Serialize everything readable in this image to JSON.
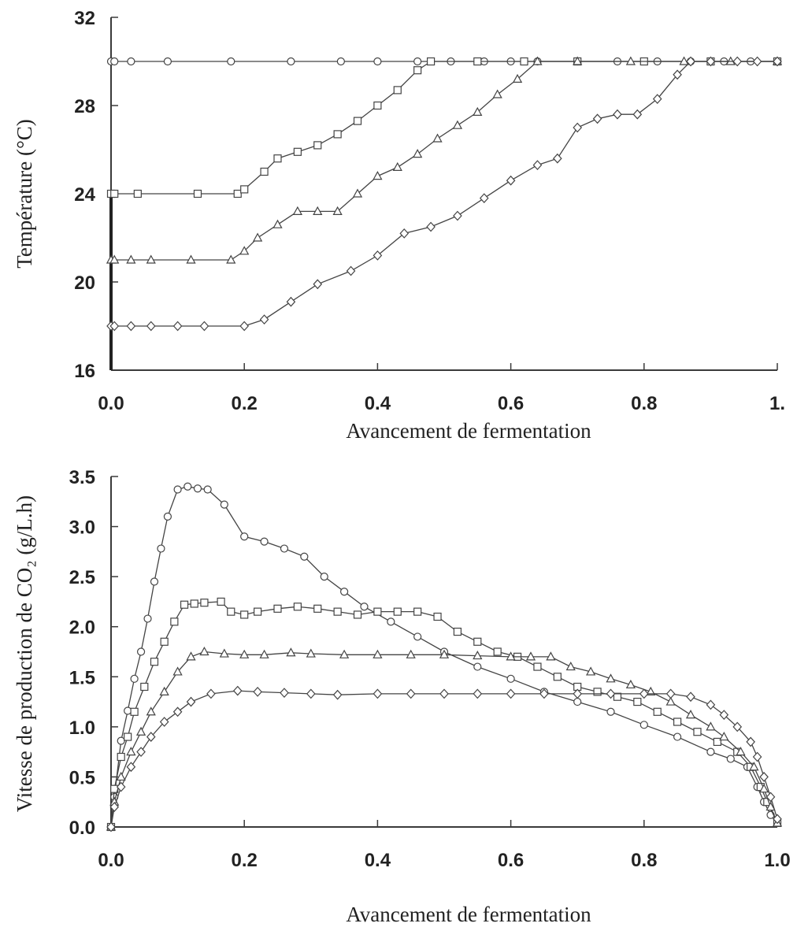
{
  "chart_data": [
    {
      "type": "line",
      "xlabel": "Avancement de fermentation",
      "ylabel": "Température (°C)",
      "xlim": [
        0,
        1
      ],
      "ylim": [
        16,
        32
      ],
      "xticks": [
        "0.0",
        "0.2",
        "0.4",
        "0.6",
        "0.8",
        "1."
      ],
      "yticks": [
        "16",
        "20",
        "24",
        "28",
        "32"
      ],
      "grid": false,
      "series": [
        {
          "marker": "circle",
          "x": [
            0,
            0.005,
            0.03,
            0.085,
            0.18,
            0.27,
            0.345,
            0.4,
            0.46,
            0.51,
            0.56,
            0.6,
            0.64,
            0.7,
            0.76,
            0.82,
            0.87,
            0.92,
            0.96,
            1.0
          ],
          "y": [
            30,
            30,
            30,
            30,
            30,
            30,
            30,
            30,
            30,
            30,
            30,
            30,
            30,
            30,
            30,
            30,
            30,
            30,
            30,
            30
          ]
        },
        {
          "marker": "square",
          "x": [
            0,
            0.005,
            0.04,
            0.13,
            0.19,
            0.2,
            0.23,
            0.25,
            0.28,
            0.31,
            0.34,
            0.37,
            0.4,
            0.43,
            0.46,
            0.48,
            0.55,
            0.62,
            0.7,
            0.8,
            0.9,
            1.0
          ],
          "y": [
            24,
            24,
            24,
            24,
            24,
            24.2,
            25,
            25.6,
            25.9,
            26.2,
            26.7,
            27.3,
            28,
            28.7,
            29.6,
            30,
            30,
            30,
            30,
            30,
            30,
            30
          ]
        },
        {
          "marker": "triangle",
          "x": [
            0,
            0.005,
            0.03,
            0.06,
            0.12,
            0.18,
            0.2,
            0.22,
            0.25,
            0.28,
            0.31,
            0.34,
            0.37,
            0.4,
            0.43,
            0.46,
            0.49,
            0.52,
            0.55,
            0.58,
            0.61,
            0.64,
            0.7,
            0.78,
            0.86,
            0.93,
            1.0
          ],
          "y": [
            21,
            21,
            21,
            21,
            21,
            21,
            21.4,
            22,
            22.6,
            23.2,
            23.2,
            23.2,
            24,
            24.8,
            25.2,
            25.8,
            26.5,
            27.1,
            27.7,
            28.5,
            29.2,
            30,
            30,
            30,
            30,
            30,
            30
          ]
        },
        {
          "marker": "diamond",
          "x": [
            0,
            0.005,
            0.03,
            0.06,
            0.1,
            0.14,
            0.2,
            0.23,
            0.27,
            0.31,
            0.36,
            0.4,
            0.44,
            0.48,
            0.52,
            0.56,
            0.6,
            0.64,
            0.67,
            0.7,
            0.73,
            0.76,
            0.79,
            0.82,
            0.85,
            0.87,
            0.9,
            0.94,
            0.97,
            1.0
          ],
          "y": [
            18,
            18,
            18,
            18,
            18,
            18,
            18,
            18.3,
            19.1,
            19.9,
            20.5,
            21.2,
            22.2,
            22.5,
            23,
            23.8,
            24.6,
            25.3,
            25.6,
            27,
            27.4,
            27.6,
            27.6,
            28.3,
            29.4,
            30,
            30,
            30,
            30,
            30
          ]
        }
      ]
    },
    {
      "type": "line",
      "xlabel": "Avancement de fermentation",
      "ylabel": "Vitesse de production de CO₂ (g/L.h)",
      "xlim": [
        0,
        1
      ],
      "ylim": [
        0,
        3.5
      ],
      "xticks": [
        "0.0",
        "0.2",
        "0.4",
        "0.6",
        "0.8",
        "1.0"
      ],
      "yticks": [
        "0.0",
        "0.5",
        "1.0",
        "1.5",
        "2.0",
        "2.5",
        "3.0",
        "3.5"
      ],
      "grid": false,
      "series": [
        {
          "marker": "circle",
          "x": [
            0,
            0.005,
            0.015,
            0.025,
            0.035,
            0.045,
            0.055,
            0.065,
            0.075,
            0.085,
            0.1,
            0.115,
            0.13,
            0.145,
            0.17,
            0.2,
            0.23,
            0.26,
            0.29,
            0.32,
            0.35,
            0.38,
            0.42,
            0.46,
            0.5,
            0.55,
            0.6,
            0.65,
            0.7,
            0.75,
            0.8,
            0.85,
            0.9,
            0.93,
            0.955,
            0.97,
            0.98,
            0.99,
            1.0
          ],
          "y": [
            0,
            0.3,
            0.86,
            1.16,
            1.48,
            1.75,
            2.08,
            2.45,
            2.78,
            3.1,
            3.37,
            3.4,
            3.38,
            3.37,
            3.22,
            2.9,
            2.85,
            2.78,
            2.7,
            2.5,
            2.35,
            2.2,
            2.05,
            1.9,
            1.75,
            1.6,
            1.48,
            1.35,
            1.25,
            1.15,
            1.02,
            0.9,
            0.75,
            0.68,
            0.6,
            0.4,
            0.25,
            0.12,
            0.04
          ]
        },
        {
          "marker": "square",
          "x": [
            0,
            0.005,
            0.015,
            0.025,
            0.035,
            0.05,
            0.065,
            0.08,
            0.095,
            0.11,
            0.125,
            0.14,
            0.165,
            0.18,
            0.2,
            0.22,
            0.25,
            0.28,
            0.31,
            0.34,
            0.37,
            0.4,
            0.43,
            0.46,
            0.49,
            0.52,
            0.55,
            0.58,
            0.61,
            0.64,
            0.67,
            0.7,
            0.73,
            0.76,
            0.79,
            0.82,
            0.85,
            0.88,
            0.91,
            0.94,
            0.96,
            0.975,
            0.985,
            1.0
          ],
          "y": [
            0,
            0.38,
            0.7,
            0.9,
            1.15,
            1.4,
            1.65,
            1.85,
            2.05,
            2.22,
            2.23,
            2.24,
            2.25,
            2.15,
            2.12,
            2.15,
            2.18,
            2.2,
            2.18,
            2.15,
            2.12,
            2.15,
            2.15,
            2.15,
            2.1,
            1.95,
            1.85,
            1.75,
            1.7,
            1.6,
            1.5,
            1.4,
            1.35,
            1.3,
            1.25,
            1.15,
            1.05,
            0.95,
            0.85,
            0.75,
            0.6,
            0.4,
            0.25,
            0.04
          ]
        },
        {
          "marker": "triangle",
          "x": [
            0,
            0.005,
            0.015,
            0.03,
            0.045,
            0.06,
            0.08,
            0.1,
            0.12,
            0.14,
            0.17,
            0.2,
            0.23,
            0.27,
            0.3,
            0.35,
            0.4,
            0.45,
            0.5,
            0.55,
            0.6,
            0.63,
            0.66,
            0.69,
            0.72,
            0.75,
            0.78,
            0.81,
            0.84,
            0.87,
            0.9,
            0.92,
            0.945,
            0.965,
            0.98,
            0.99,
            1.0
          ],
          "y": [
            0,
            0.25,
            0.5,
            0.75,
            0.95,
            1.15,
            1.35,
            1.55,
            1.7,
            1.75,
            1.73,
            1.72,
            1.72,
            1.74,
            1.73,
            1.72,
            1.72,
            1.72,
            1.72,
            1.71,
            1.7,
            1.7,
            1.7,
            1.6,
            1.55,
            1.48,
            1.42,
            1.35,
            1.25,
            1.12,
            1.0,
            0.9,
            0.75,
            0.6,
            0.38,
            0.2,
            0.04
          ]
        },
        {
          "marker": "diamond",
          "x": [
            0,
            0.005,
            0.015,
            0.03,
            0.045,
            0.06,
            0.08,
            0.1,
            0.12,
            0.15,
            0.19,
            0.22,
            0.26,
            0.3,
            0.34,
            0.4,
            0.45,
            0.5,
            0.55,
            0.6,
            0.65,
            0.7,
            0.75,
            0.8,
            0.84,
            0.87,
            0.9,
            0.92,
            0.94,
            0.96,
            0.97,
            0.98,
            0.99,
            1.0
          ],
          "y": [
            0,
            0.2,
            0.4,
            0.6,
            0.75,
            0.9,
            1.05,
            1.15,
            1.25,
            1.33,
            1.36,
            1.35,
            1.34,
            1.33,
            1.32,
            1.33,
            1.33,
            1.33,
            1.33,
            1.33,
            1.33,
            1.33,
            1.33,
            1.33,
            1.33,
            1.3,
            1.22,
            1.12,
            1.0,
            0.85,
            0.7,
            0.5,
            0.3,
            0.08
          ]
        }
      ]
    }
  ]
}
